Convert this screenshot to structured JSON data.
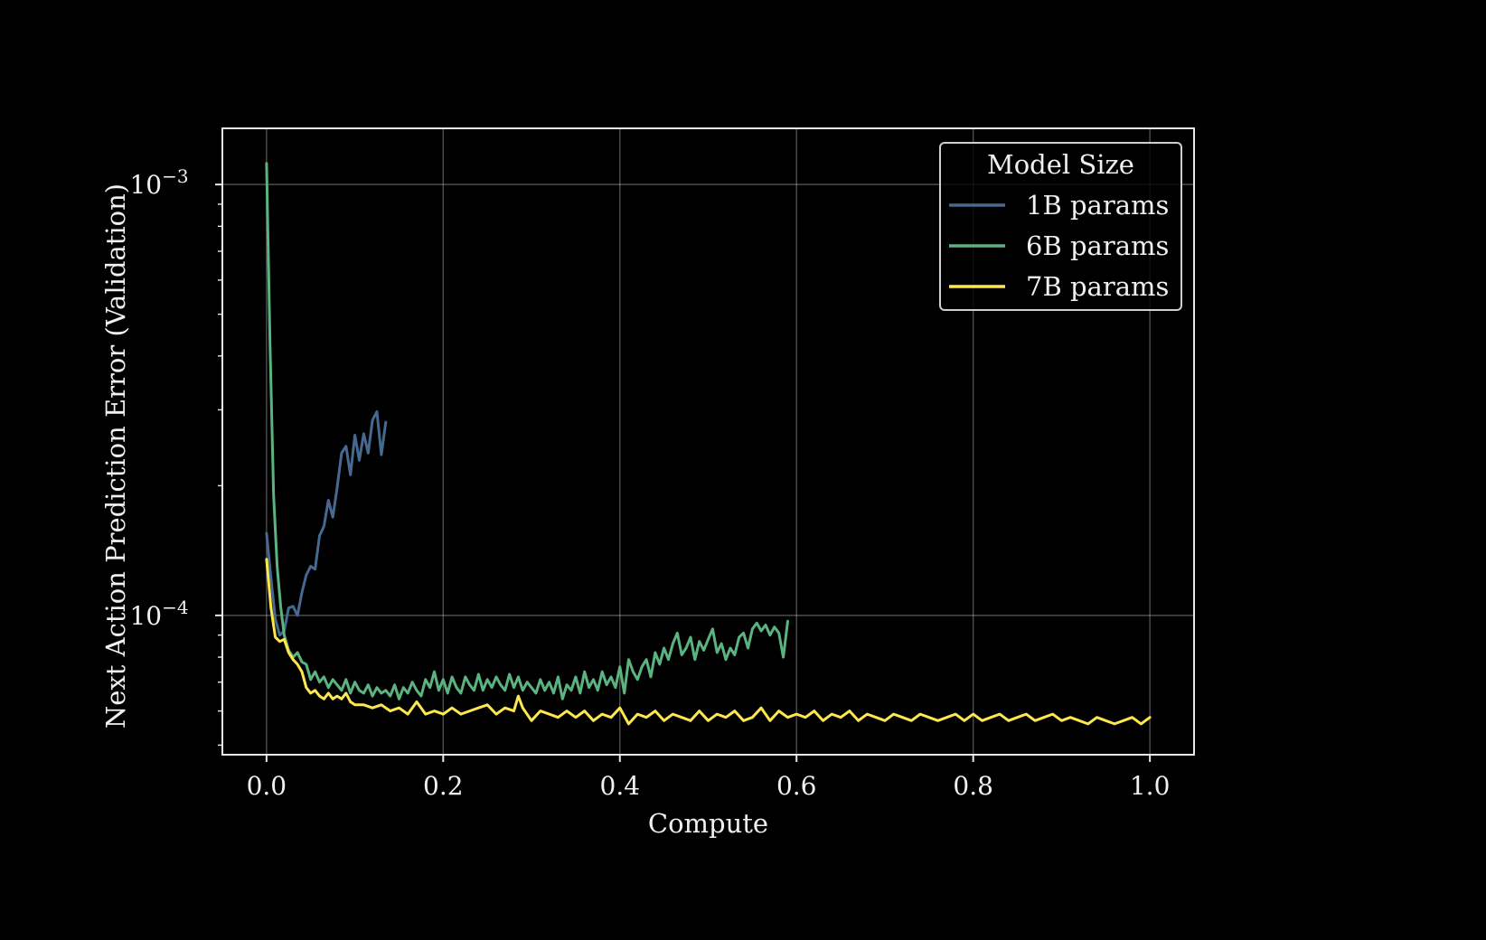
{
  "chart_data": {
    "type": "line",
    "title": "",
    "xlabel": "Compute",
    "ylabel": "Next Action Prediction Error (Validation)",
    "xlim": [
      -0.05,
      1.05
    ],
    "ylim": [
      4.75e-05,
      0.00135
    ],
    "yscale": "log",
    "x_ticks": [
      0.0,
      0.2,
      0.4,
      0.6,
      0.8,
      1.0
    ],
    "x_tick_labels": [
      "0.0",
      "0.2",
      "0.4",
      "0.6",
      "0.8",
      "1.0"
    ],
    "y_ticks": [
      0.0001,
      0.001
    ],
    "y_tick_label_base": "10",
    "y_tick_label_exponents": [
      "−4",
      "−3"
    ],
    "grid": true,
    "legend": {
      "title": "Model Size",
      "position": "top-right"
    },
    "series": [
      {
        "name": "1B params",
        "color": "#46698f",
        "x": [
          0.0,
          0.005,
          0.01,
          0.015,
          0.02,
          0.025,
          0.03,
          0.035,
          0.04,
          0.045,
          0.05,
          0.055,
          0.06,
          0.065,
          0.07,
          0.075,
          0.08,
          0.085,
          0.09,
          0.095,
          0.1,
          0.105,
          0.11,
          0.115,
          0.12,
          0.125,
          0.13,
          0.135
        ],
        "y": [
          0.000155,
          0.000122,
          9.8e-05,
          9e-05,
          9.2e-05,
          0.000104,
          0.000105,
          0.0001,
          0.000113,
          0.000124,
          0.00013,
          0.000128,
          0.000153,
          0.000161,
          0.000185,
          0.000169,
          0.000198,
          0.000238,
          0.000247,
          0.000212,
          0.000262,
          0.000229,
          0.000264,
          0.000238,
          0.000284,
          0.000297,
          0.000236,
          0.000281
        ]
      },
      {
        "name": "6B params",
        "color": "#5bb37f",
        "x": [
          0.0,
          0.004,
          0.008,
          0.012,
          0.016,
          0.02,
          0.025,
          0.03,
          0.035,
          0.04,
          0.045,
          0.05,
          0.055,
          0.06,
          0.065,
          0.07,
          0.075,
          0.08,
          0.085,
          0.09,
          0.095,
          0.1,
          0.105,
          0.11,
          0.115,
          0.12,
          0.125,
          0.13,
          0.135,
          0.14,
          0.145,
          0.15,
          0.155,
          0.16,
          0.165,
          0.17,
          0.175,
          0.18,
          0.185,
          0.19,
          0.195,
          0.2,
          0.205,
          0.21,
          0.215,
          0.22,
          0.225,
          0.23,
          0.235,
          0.24,
          0.245,
          0.25,
          0.255,
          0.26,
          0.265,
          0.27,
          0.275,
          0.28,
          0.285,
          0.29,
          0.295,
          0.3,
          0.305,
          0.31,
          0.315,
          0.32,
          0.325,
          0.33,
          0.335,
          0.34,
          0.345,
          0.35,
          0.355,
          0.36,
          0.365,
          0.37,
          0.375,
          0.38,
          0.385,
          0.39,
          0.395,
          0.4,
          0.405,
          0.41,
          0.415,
          0.42,
          0.425,
          0.43,
          0.435,
          0.44,
          0.445,
          0.45,
          0.455,
          0.46,
          0.465,
          0.47,
          0.475,
          0.48,
          0.485,
          0.49,
          0.495,
          0.5,
          0.505,
          0.51,
          0.515,
          0.52,
          0.525,
          0.53,
          0.535,
          0.54,
          0.545,
          0.55,
          0.555,
          0.56,
          0.565,
          0.57,
          0.575,
          0.58,
          0.585,
          0.59
        ],
        "y": [
          0.00112,
          0.00042,
          0.00019,
          0.00013,
          0.000105,
          9e-05,
          8.3e-05,
          8e-05,
          8.2e-05,
          7.8e-05,
          7.7e-05,
          7.1e-05,
          7.4e-05,
          7e-05,
          7.2e-05,
          6.8e-05,
          7.1e-05,
          6.9e-05,
          6.7e-05,
          7.1e-05,
          6.6e-05,
          7e-05,
          6.7e-05,
          6.6e-05,
          6.9e-05,
          6.5e-05,
          6.8e-05,
          6.6e-05,
          6.7e-05,
          6.5e-05,
          6.9e-05,
          6.4e-05,
          6.8e-05,
          6.6e-05,
          7e-05,
          6.7e-05,
          6.5e-05,
          7.1e-05,
          6.8e-05,
          7.4e-05,
          6.7e-05,
          7.1e-05,
          6.6e-05,
          7.2e-05,
          6.8e-05,
          6.6e-05,
          7.2e-05,
          6.9e-05,
          6.7e-05,
          7.3e-05,
          6.7e-05,
          7.1e-05,
          6.8e-05,
          7.2e-05,
          6.9e-05,
          6.7e-05,
          7.3e-05,
          6.8e-05,
          7.2e-05,
          6.7e-05,
          7e-05,
          6.8e-05,
          6.6e-05,
          7.1e-05,
          6.7e-05,
          7e-05,
          6.6e-05,
          7.2e-05,
          6.4e-05,
          6.9e-05,
          6.7e-05,
          7.2e-05,
          6.6e-05,
          7.4e-05,
          6.8e-05,
          7.1e-05,
          6.7e-05,
          7.4e-05,
          6.9e-05,
          7.2e-05,
          6.8e-05,
          7.6e-05,
          6.6e-05,
          7.9e-05,
          7.4e-05,
          7.1e-05,
          7.6e-05,
          7.9e-05,
          7.2e-05,
          8.2e-05,
          7.7e-05,
          8.4e-05,
          7.9e-05,
          8.6e-05,
          9.1e-05,
          8.1e-05,
          8.4e-05,
          8.9e-05,
          7.9e-05,
          8.7e-05,
          8.3e-05,
          8.8e-05,
          9.3e-05,
          8.2e-05,
          8.6e-05,
          7.9e-05,
          8.4e-05,
          8.1e-05,
          8.9e-05,
          9.1e-05,
          8.4e-05,
          9.3e-05,
          9.6e-05,
          9.2e-05,
          9.5e-05,
          9e-05,
          9.4e-05,
          9.1e-05,
          8e-05,
          9.7e-05
        ]
      },
      {
        "name": "7B params",
        "color": "#fde74c",
        "x": [
          0.0,
          0.005,
          0.01,
          0.015,
          0.02,
          0.025,
          0.03,
          0.035,
          0.04,
          0.045,
          0.05,
          0.055,
          0.06,
          0.065,
          0.07,
          0.075,
          0.08,
          0.085,
          0.09,
          0.095,
          0.1,
          0.11,
          0.12,
          0.13,
          0.14,
          0.15,
          0.16,
          0.17,
          0.18,
          0.19,
          0.2,
          0.21,
          0.22,
          0.23,
          0.24,
          0.25,
          0.26,
          0.27,
          0.28,
          0.285,
          0.29,
          0.3,
          0.31,
          0.32,
          0.33,
          0.34,
          0.35,
          0.36,
          0.37,
          0.38,
          0.39,
          0.4,
          0.41,
          0.42,
          0.43,
          0.44,
          0.45,
          0.46,
          0.47,
          0.48,
          0.49,
          0.5,
          0.51,
          0.52,
          0.53,
          0.54,
          0.55,
          0.56,
          0.57,
          0.58,
          0.59,
          0.6,
          0.61,
          0.62,
          0.63,
          0.64,
          0.65,
          0.66,
          0.67,
          0.68,
          0.69,
          0.7,
          0.71,
          0.72,
          0.73,
          0.74,
          0.75,
          0.76,
          0.77,
          0.78,
          0.79,
          0.8,
          0.81,
          0.82,
          0.83,
          0.84,
          0.85,
          0.86,
          0.87,
          0.88,
          0.89,
          0.9,
          0.91,
          0.92,
          0.93,
          0.94,
          0.95,
          0.96,
          0.97,
          0.98,
          0.99,
          1.0
        ],
        "y": [
          0.000135,
          0.000104,
          8.9e-05,
          8.7e-05,
          8.8e-05,
          8.2e-05,
          7.9e-05,
          7.7e-05,
          7.4e-05,
          6.8e-05,
          6.6e-05,
          6.7e-05,
          6.5e-05,
          6.4e-05,
          6.6e-05,
          6.4e-05,
          6.5e-05,
          6.4e-05,
          6.6e-05,
          6.3e-05,
          6.2e-05,
          6.2e-05,
          6.1e-05,
          6.2e-05,
          6e-05,
          6.1e-05,
          5.9e-05,
          6.3e-05,
          5.9e-05,
          6e-05,
          5.9e-05,
          6.1e-05,
          5.9e-05,
          6e-05,
          6.1e-05,
          6.2e-05,
          5.9e-05,
          6.1e-05,
          6e-05,
          6.5e-05,
          6.1e-05,
          5.7e-05,
          6e-05,
          5.9e-05,
          5.8e-05,
          6e-05,
          5.8e-05,
          6e-05,
          5.7e-05,
          5.9e-05,
          5.8e-05,
          6.1e-05,
          5.6e-05,
          5.9e-05,
          5.8e-05,
          6e-05,
          5.7e-05,
          5.9e-05,
          5.8e-05,
          5.7e-05,
          6e-05,
          5.7e-05,
          5.9e-05,
          5.8e-05,
          6e-05,
          5.7e-05,
          5.8e-05,
          6.1e-05,
          5.7e-05,
          6e-05,
          5.8e-05,
          5.9e-05,
          5.8e-05,
          6e-05,
          5.7e-05,
          5.9e-05,
          5.8e-05,
          6e-05,
          5.7e-05,
          5.9e-05,
          5.8e-05,
          5.7e-05,
          5.9e-05,
          5.8e-05,
          5.7e-05,
          5.9e-05,
          5.8e-05,
          5.7e-05,
          5.8e-05,
          5.9e-05,
          5.7e-05,
          5.9e-05,
          5.7e-05,
          5.8e-05,
          5.9e-05,
          5.7e-05,
          5.8e-05,
          5.9e-05,
          5.7e-05,
          5.8e-05,
          5.9e-05,
          5.7e-05,
          5.8e-05,
          5.7e-05,
          5.6e-05,
          5.8e-05,
          5.7e-05,
          5.6e-05,
          5.7e-05,
          5.8e-05,
          5.6e-05,
          5.8e-05
        ]
      }
    ]
  }
}
